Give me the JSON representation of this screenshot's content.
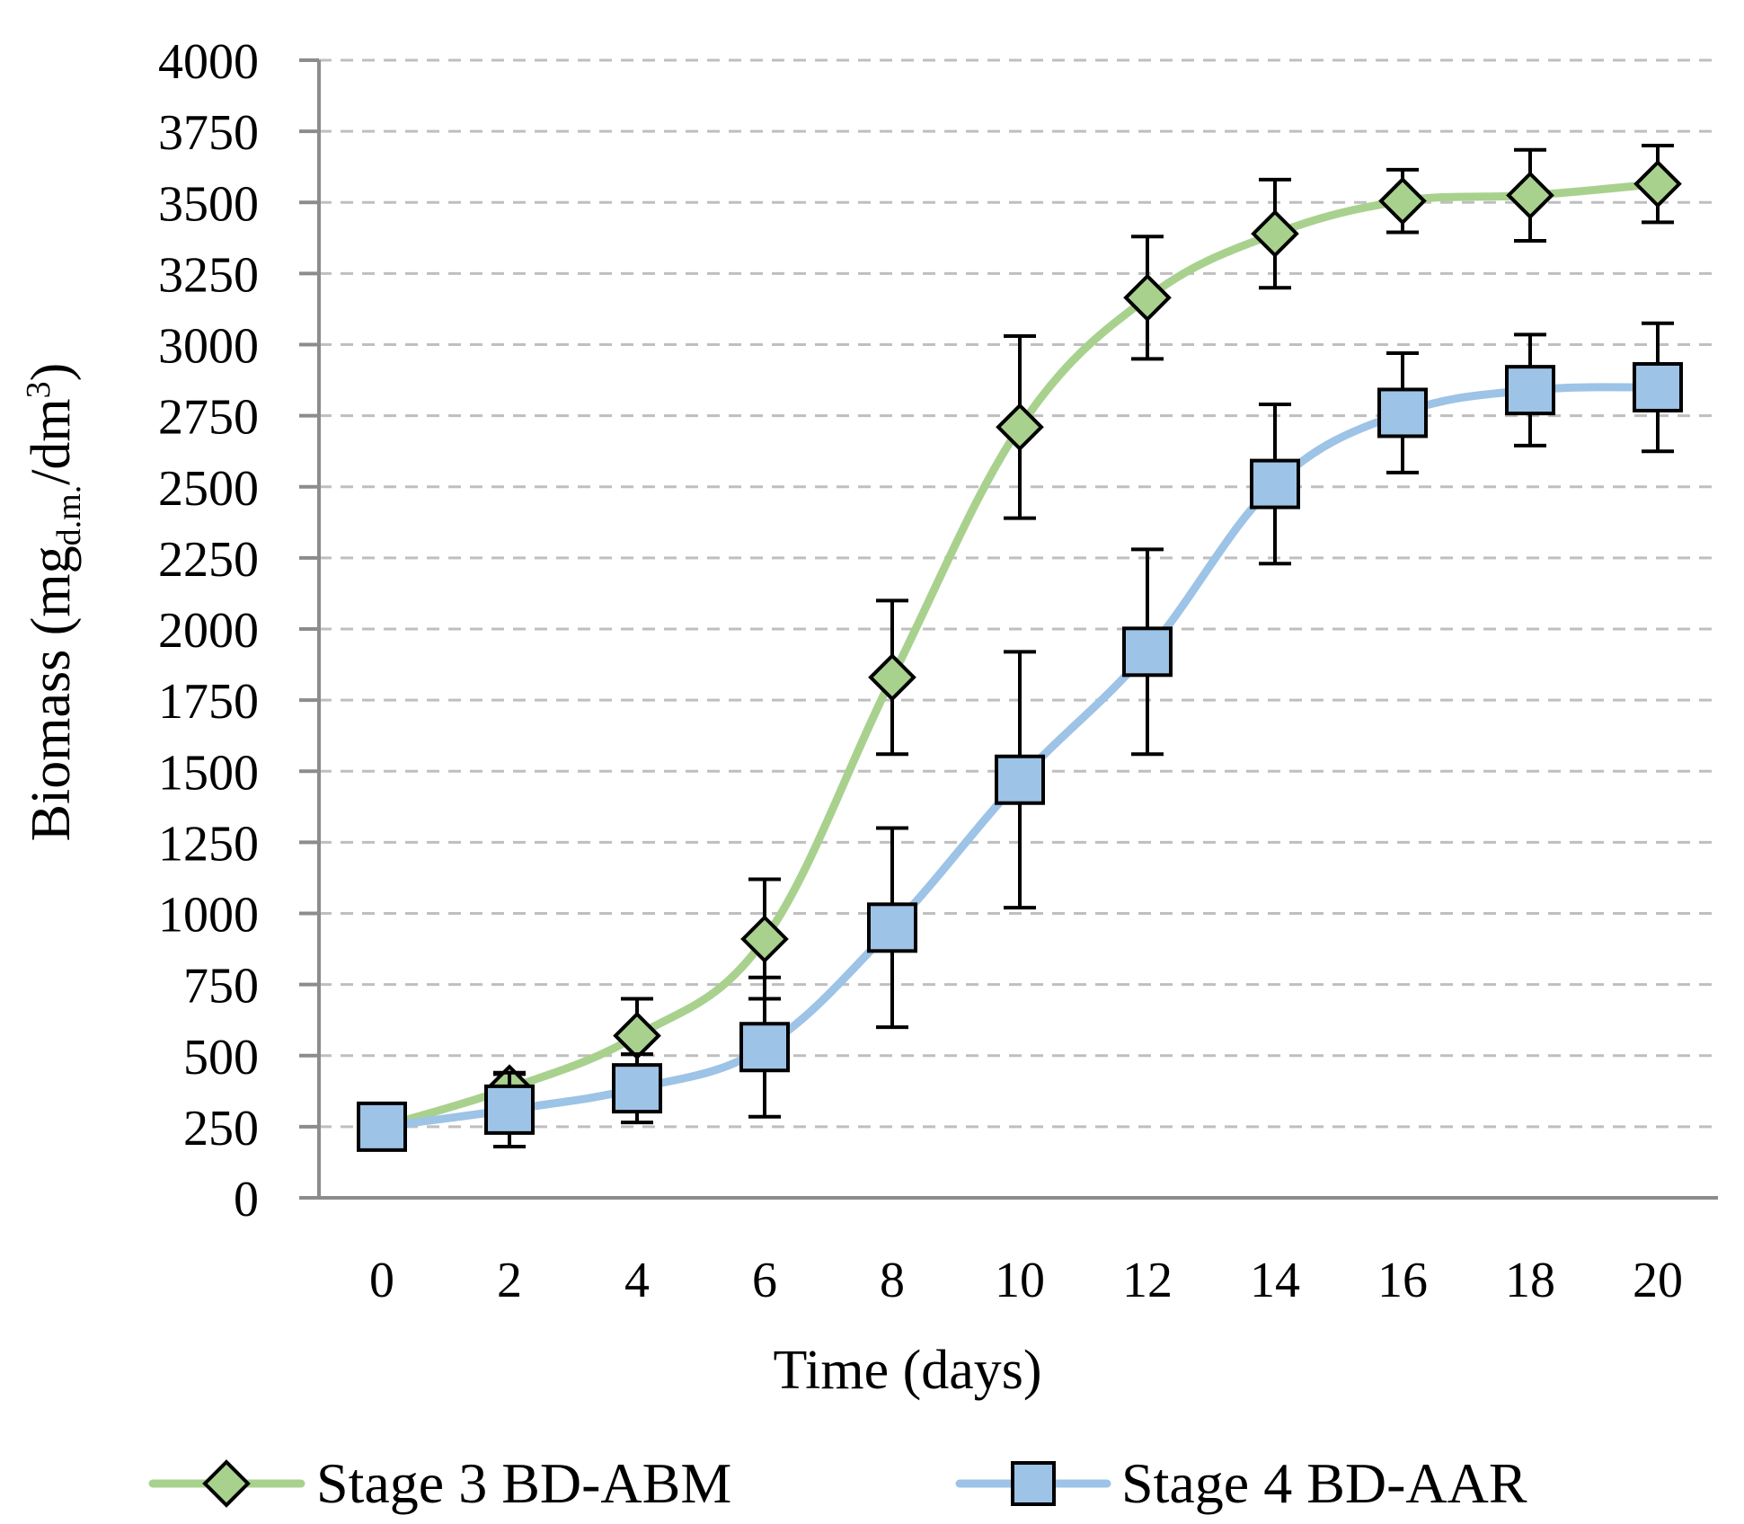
{
  "chart_data": {
    "type": "line",
    "title": "",
    "xlabel": "Time (days)",
    "ylabel": {
      "main": "Biomass (mg",
      "subscript": "d.m.",
      "unit": "/dm",
      "superscript": "3",
      "close": ")"
    },
    "x": [
      0,
      2,
      4,
      6,
      8,
      10,
      12,
      14,
      16,
      18,
      20
    ],
    "xlim": [
      0,
      20
    ],
    "ylim": [
      0,
      4000
    ],
    "y_ticks": [
      0,
      250,
      500,
      750,
      1000,
      1250,
      1500,
      1750,
      2000,
      2250,
      2500,
      2750,
      3000,
      3250,
      3500,
      3750,
      4000
    ],
    "grid": true,
    "legend_position": "bottom",
    "series": [
      {
        "name": "Stage 3 BD-ABM",
        "color": "#a9d18e",
        "marker": "diamond",
        "values": [
          250,
          385,
          570,
          910,
          1830,
          2710,
          3165,
          3390,
          3505,
          3525,
          3565
        ],
        "error": [
          10,
          50,
          130,
          210,
          270,
          320,
          215,
          190,
          110,
          160,
          135
        ]
      },
      {
        "name": "Stage 4 BD-AAR",
        "color": "#9dc3e6",
        "marker": "square",
        "values": [
          250,
          310,
          385,
          530,
          950,
          1470,
          1920,
          2510,
          2760,
          2840,
          2850
        ],
        "error": [
          15,
          130,
          120,
          245,
          350,
          450,
          360,
          280,
          210,
          195,
          225
        ]
      }
    ]
  }
}
